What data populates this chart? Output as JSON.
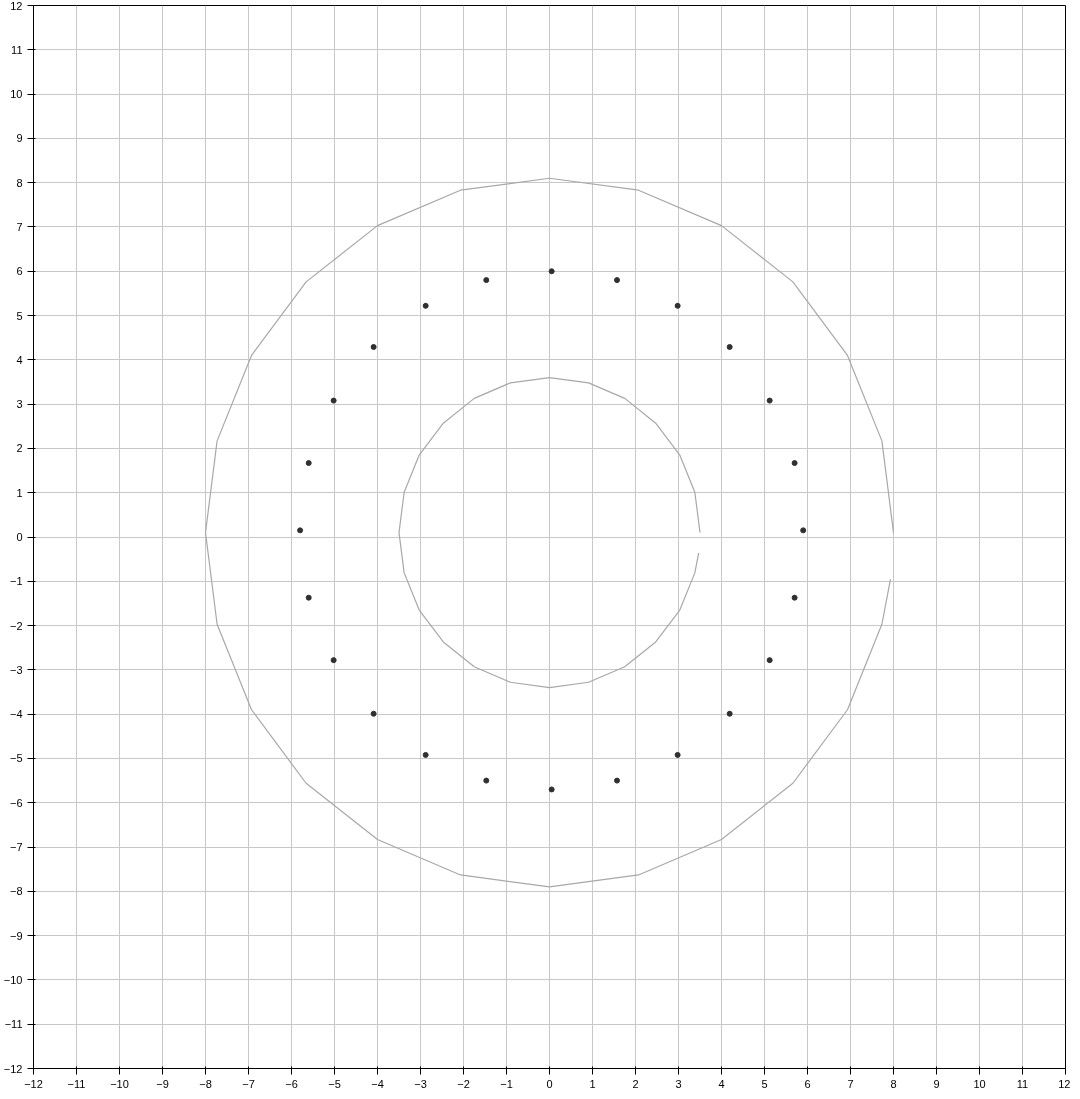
{
  "chart_data": {
    "type": "line",
    "xlim": [
      -12,
      12
    ],
    "ylim": [
      -12,
      12
    ],
    "xticks": [
      -12,
      -11,
      -10,
      -9,
      -8,
      -7,
      -6,
      -5,
      -4,
      -3,
      -2,
      -1,
      0,
      1,
      2,
      3,
      4,
      5,
      6,
      7,
      8,
      9,
      10,
      11,
      12
    ],
    "yticks": [
      -12,
      -11,
      -10,
      -9,
      -8,
      -7,
      -6,
      -5,
      -4,
      -3,
      -2,
      -1,
      0,
      1,
      2,
      3,
      4,
      5,
      6,
      7,
      8,
      9,
      10,
      11,
      12
    ],
    "grid": true,
    "marker": "circle",
    "line_style": "solid",
    "series": [
      {
        "marker": "none",
        "color": "#a8a8a8",
        "x": [
          8,
          7.73,
          6.93,
          5.66,
          4,
          2.07,
          0,
          -2.07,
          -4,
          -5.66,
          -6.93,
          -7.73,
          -8,
          -7.73,
          -6.93,
          -5.66,
          -4,
          -2.07,
          0,
          2.07,
          4,
          5.66,
          6.93,
          7.73,
          7.93
        ],
        "values": [
          0.1,
          2.17,
          4.1,
          5.76,
          7.03,
          7.83,
          8.1,
          7.83,
          7.03,
          5.76,
          4.1,
          2.17,
          0.1,
          -1.97,
          -3.9,
          -5.56,
          -6.83,
          -7.63,
          -7.9,
          -7.63,
          -6.83,
          -5.56,
          -3.9,
          -1.97,
          -0.95
        ]
      },
      {
        "type": "scatter",
        "color": "#303030",
        "x": [
          5.9,
          5.7,
          5.12,
          4.19,
          2.98,
          1.57,
          0.05,
          -1.47,
          -2.88,
          -4.09,
          -5.02,
          -5.6,
          -5.8,
          -5.6,
          -5.02,
          -4.09,
          -2.88,
          -1.47,
          0.05,
          1.57,
          2.98,
          4.19,
          5.12,
          5.7
        ],
        "values": [
          0.15,
          1.67,
          3.08,
          4.29,
          5.22,
          5.8,
          6.0,
          5.8,
          5.22,
          4.29,
          3.08,
          1.67,
          0.15,
          -1.37,
          -2.78,
          -3.99,
          -4.92,
          -5.5,
          -5.7,
          -5.5,
          -4.92,
          -3.99,
          -2.78,
          -1.37
        ]
      },
      {
        "marker": "none",
        "color": "#a8a8a8",
        "x": [
          3.5,
          3.38,
          3.03,
          2.47,
          1.75,
          0.91,
          0,
          -0.91,
          -1.75,
          -2.47,
          -3.03,
          -3.38,
          -3.5,
          -3.38,
          -3.03,
          -2.47,
          -1.75,
          -0.91,
          0,
          0.91,
          1.75,
          2.47,
          3.03,
          3.38,
          3.47
        ],
        "values": [
          0.1,
          1.01,
          1.85,
          2.57,
          3.13,
          3.48,
          3.6,
          3.48,
          3.13,
          2.57,
          1.85,
          1.01,
          0.1,
          -0.81,
          -1.65,
          -2.37,
          -2.93,
          -3.28,
          -3.4,
          -3.28,
          -2.93,
          -2.37,
          -1.65,
          -0.81,
          -0.36
        ]
      }
    ]
  }
}
